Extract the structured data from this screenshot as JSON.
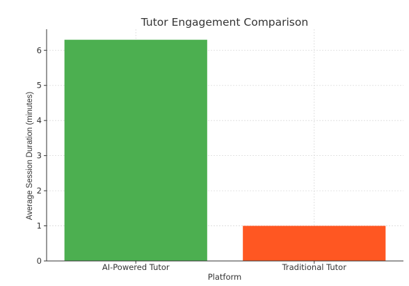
{
  "chart_data": {
    "type": "bar",
    "title": "Tutor Engagement Comparison",
    "xlabel": "Platform",
    "ylabel": "Average Session Duration (minutes)",
    "categories": [
      "AI-Powered Tutor",
      "Traditional Tutor"
    ],
    "values": [
      6.3,
      1.0
    ],
    "colors": [
      "#4caf50",
      "#ff5722"
    ],
    "ylim": [
      0,
      6.6
    ],
    "yticks": [
      "0",
      "1",
      "2",
      "3",
      "4",
      "5",
      "6"
    ],
    "grid": true
  }
}
